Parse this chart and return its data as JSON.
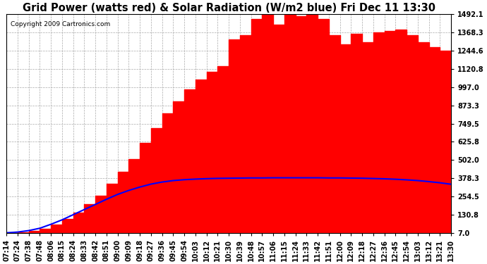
{
  "title": "Grid Power (watts red) & Solar Radiation (W/m2 blue) Fri Dec 11 13:30",
  "copyright_text": "Copyright 2009 Cartronics.com",
  "yticks": [
    7.0,
    130.8,
    254.5,
    378.3,
    502.0,
    625.8,
    749.5,
    873.3,
    997.0,
    1120.8,
    1244.6,
    1368.3,
    1492.1
  ],
  "ymin": 7.0,
  "ymax": 1492.1,
  "bg_color": "#ffffff",
  "plot_bg_color": "#ffffff",
  "grid_color": "#aaaaaa",
  "red_fill_color": "#ff0000",
  "blue_line_color": "#0000ff",
  "x_times": [
    "07:14",
    "07:24",
    "07:38",
    "07:48",
    "08:06",
    "08:15",
    "08:24",
    "08:33",
    "08:42",
    "08:51",
    "09:00",
    "09:09",
    "09:18",
    "09:27",
    "09:36",
    "09:45",
    "09:54",
    "10:03",
    "10:12",
    "10:21",
    "10:30",
    "10:39",
    "10:48",
    "10:57",
    "11:06",
    "11:15",
    "11:24",
    "11:33",
    "11:42",
    "11:51",
    "12:00",
    "12:09",
    "12:18",
    "12:27",
    "12:36",
    "12:45",
    "12:54",
    "13:03",
    "13:12",
    "13:21",
    "13:30"
  ],
  "red_values": [
    7,
    10,
    20,
    35,
    65,
    100,
    145,
    200,
    260,
    340,
    420,
    510,
    620,
    720,
    820,
    900,
    980,
    1050,
    1100,
    1140,
    1320,
    1350,
    1460,
    1492,
    1420,
    1492,
    1480,
    1492,
    1460,
    1350,
    1290,
    1360,
    1300,
    1370,
    1380,
    1390,
    1350,
    1300,
    1270,
    1244,
    1200
  ],
  "blue_values": [
    7,
    12,
    22,
    38,
    65,
    95,
    130,
    165,
    200,
    235,
    268,
    295,
    318,
    338,
    352,
    362,
    368,
    372,
    375,
    377,
    378,
    379,
    380,
    380,
    381,
    381,
    381,
    381,
    381,
    380,
    380,
    379,
    378,
    376,
    374,
    371,
    367,
    362,
    355,
    347,
    337
  ],
  "title_fontsize": 10.5,
  "tick_fontsize": 7,
  "copyright_fontsize": 6.5
}
